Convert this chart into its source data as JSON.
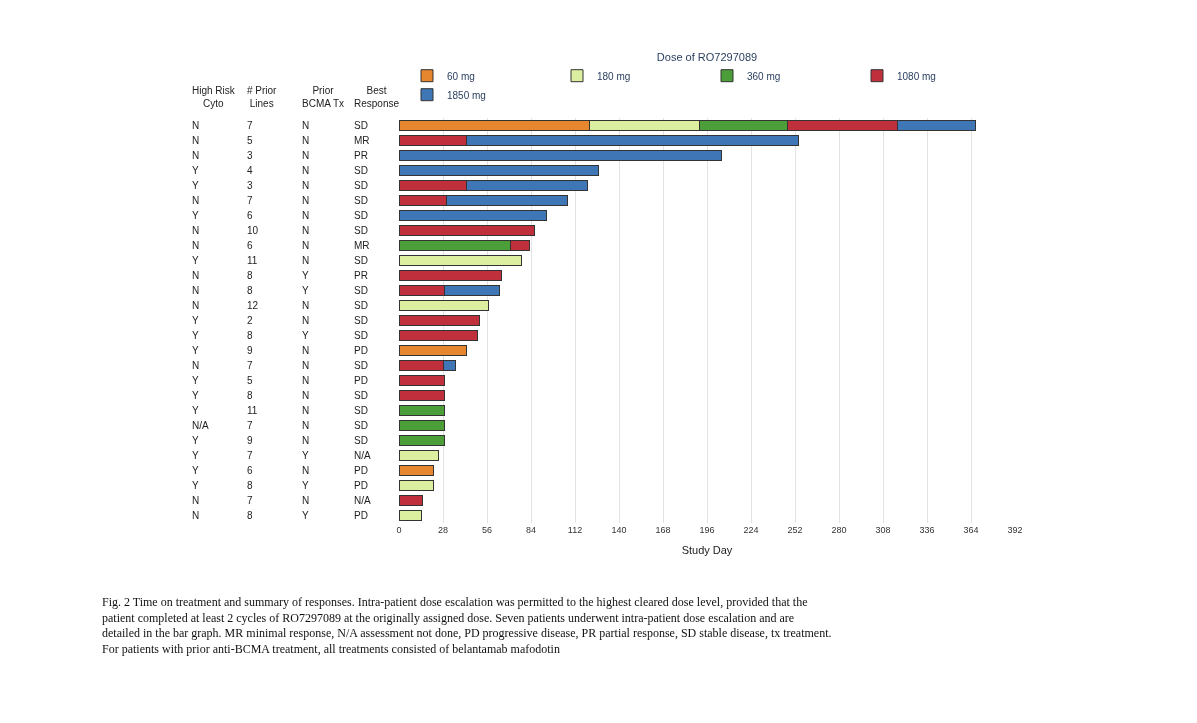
{
  "chart_data": {
    "type": "bar",
    "orientation": "horizontal",
    "stacked": true,
    "categories": [
      "N 7 N SD",
      "N 5 N MR",
      "N 3 N PR",
      "Y 4 N SD",
      "Y 3 N SD",
      "N 7 N SD",
      "Y 6 N SD",
      "N 10 N SD",
      "N 6 N MR",
      "Y 11 N SD",
      "N 8 Y PR",
      "N 8 Y SD",
      "N 12 N SD",
      "Y 2 N SD",
      "Y 8 Y SD",
      "Y 9 N PD",
      "N 7 N SD",
      "Y 5 N PD",
      "Y 8 N SD",
      "Y 11 N SD",
      "N/A 7 N SD",
      "Y 9 N SD",
      "Y 7 Y N/A",
      "Y 6 N PD",
      "Y 8 Y PD",
      "N 7 N N/A",
      "N 8 Y PD"
    ],
    "series": [
      {
        "name": "60 mg",
        "color": "#e6862f",
        "values": [
          121,
          null,
          null,
          null,
          null,
          null,
          null,
          null,
          null,
          null,
          null,
          null,
          null,
          null,
          null,
          43,
          null,
          null,
          null,
          null,
          null,
          null,
          null,
          22,
          null,
          null,
          null
        ]
      },
      {
        "name": "180 mg",
        "color": "#dcefa0",
        "values": [
          70,
          null,
          null,
          null,
          null,
          null,
          null,
          null,
          null,
          78,
          null,
          null,
          57,
          null,
          null,
          null,
          null,
          null,
          null,
          null,
          null,
          null,
          25,
          null,
          22,
          null,
          14
        ]
      },
      {
        "name": "360 mg",
        "color": "#4c9f38",
        "values": [
          56,
          null,
          null,
          null,
          null,
          null,
          null,
          null,
          71,
          null,
          null,
          null,
          null,
          null,
          null,
          null,
          null,
          null,
          null,
          29,
          29,
          29,
          null,
          null,
          null,
          null,
          null
        ]
      },
      {
        "name": "1080 mg",
        "color": "#c0303c",
        "values": [
          70,
          43,
          null,
          null,
          43,
          30,
          null,
          86,
          12,
          null,
          65,
          29,
          null,
          51,
          50,
          null,
          28,
          29,
          29,
          null,
          null,
          null,
          null,
          null,
          null,
          15,
          null
        ]
      },
      {
        "name": "1850 mg",
        "color": "#3f76b5",
        "values": [
          50,
          211,
          205,
          127,
          77,
          77,
          94,
          null,
          null,
          null,
          null,
          35,
          null,
          null,
          null,
          null,
          8,
          null,
          null,
          null,
          null,
          null,
          null,
          null,
          null,
          null,
          null
        ]
      }
    ],
    "xlabel": "Study Day",
    "legend_title": "Dose of RO7297089",
    "legend": "top",
    "xlim": [
      0,
      392
    ],
    "xticks": [
      0,
      28,
      56,
      84,
      112,
      140,
      168,
      196,
      224,
      252,
      280,
      308,
      336,
      364,
      392
    ],
    "grid": "x",
    "annotations": [
      "High Risk\nCyto",
      "# Prior\nLines",
      "Prior\nBCMA Tx",
      "Best\nResponse",
      "Fig. 2 Time on treatment and summary of responses. Intra-patient dose escalation was permitted to the highest cleared dose level, provided that the patient completed at least 2 cycles of RO7297089 at the originally assigned dose. Seven patients underwent intra-patient dose escalation and are detailed in the bar graph. MR minimal response, N/A assessment not done, PD progressive disease, PR partial response, SD stable disease, tx treatment. For patients with prior anti-BCMA treatment, all treatments consisted of belantamab mafodotin"
    ]
  }
}
